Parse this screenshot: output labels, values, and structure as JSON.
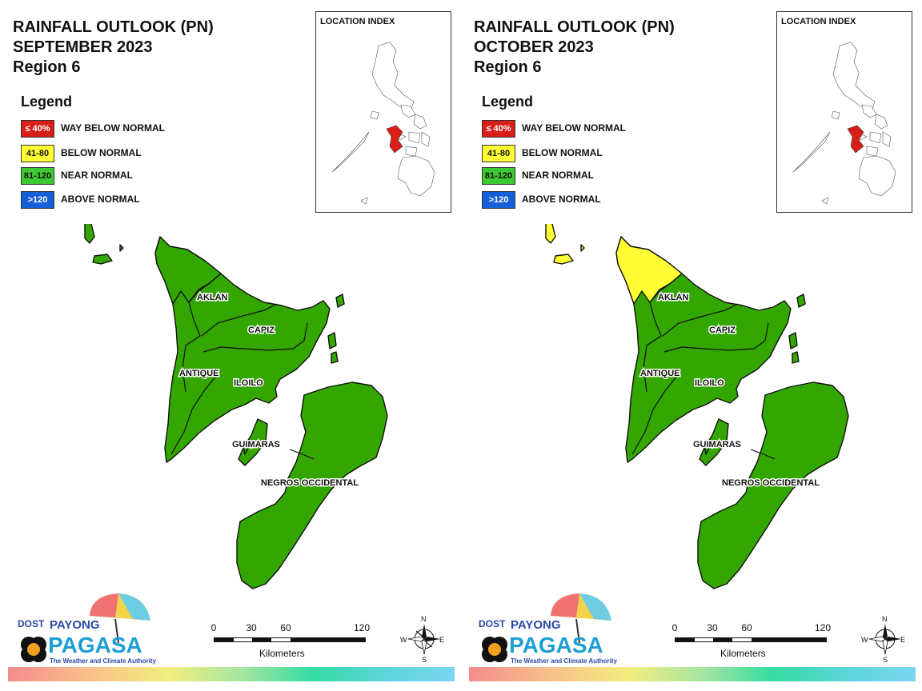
{
  "legend_title": "Legend",
  "legend": [
    {
      "range": "≤ 40%",
      "label": "WAY BELOW NORMAL",
      "color": "#d91e18",
      "text_color": "#ffffff"
    },
    {
      "range": "41-80",
      "label": "BELOW NORMAL",
      "color": "#ffff33",
      "text_color": "#111111"
    },
    {
      "range": "81-120",
      "label": "NEAR NORMAL",
      "color": "#3dc931",
      "text_color": "#111111"
    },
    {
      "range": ">120",
      "label": "ABOVE NORMAL",
      "color": "#1560d8",
      "text_color": "#ffffff"
    }
  ],
  "location_index_title": "LOCATION INDEX",
  "provinces": [
    "AKLAN",
    "CAPIZ",
    "ANTIQUE",
    "ILOILO",
    "GUIMARAS",
    "NEGROS OCCIDENTAL"
  ],
  "colors": {
    "near_normal": "#33a600",
    "below_normal": "#ffff33",
    "highlight": "#d91e18"
  },
  "scale": {
    "ticks": [
      "0",
      "30",
      "60",
      "120"
    ],
    "unit": "Kilometers"
  },
  "compass": {
    "n": "N",
    "s": "S",
    "e": "E",
    "w": "W"
  },
  "logo": {
    "dost": "DOST",
    "payong": "PAYONG",
    "pagasa": "PAGASA",
    "tagline": "The Weather and Climate Authority"
  },
  "panels": [
    {
      "title_line1": "RAINFALL OUTLOOK (PN)",
      "title_line2": "SEPTEMBER 2023",
      "title_line3": "Region 6",
      "north_tip": "near_normal",
      "islands": "near_normal"
    },
    {
      "title_line1": "RAINFALL OUTLOOK (PN)",
      "title_line2": "OCTOBER 2023",
      "title_line3": "Region 6",
      "north_tip": "below_normal",
      "islands": "below_normal"
    }
  ]
}
